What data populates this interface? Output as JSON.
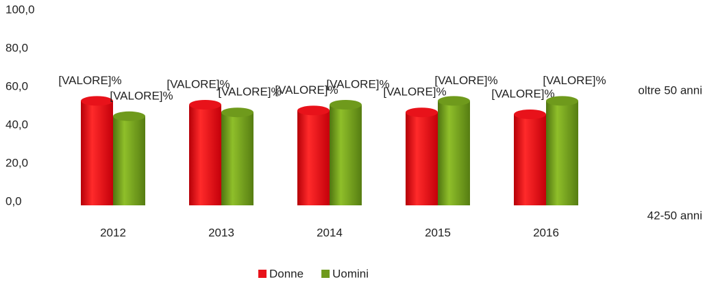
{
  "chart_data": {
    "type": "bar3d",
    "categories": [
      "2012",
      "2013",
      "2014",
      "2015",
      "2016"
    ],
    "depth_categories": [
      "42-50 anni",
      "oltre 50 anni"
    ],
    "series": [
      {
        "name": "Donne",
        "color": "#e8121a",
        "values": [
          57,
          55,
          52,
          51,
          50
        ],
        "value_labels": [
          "[VALORE]%",
          "[VALORE]%",
          "[VALORE]%",
          "[VALORE]%",
          "[VALORE]%"
        ]
      },
      {
        "name": "Uomini",
        "color": "#6f9a1c",
        "values": [
          49,
          51,
          55,
          57,
          57
        ],
        "value_labels": [
          "[VALORE]%",
          "[VALORE]%",
          "[VALORE]%",
          "[VALORE]%",
          "[VALORE]%"
        ]
      }
    ],
    "ylim": [
      0,
      100
    ],
    "yticks": [
      {
        "value": 0,
        "label": "0,0"
      },
      {
        "value": 20,
        "label": "20,0"
      },
      {
        "value": 40,
        "label": "40,0"
      },
      {
        "value": 60,
        "label": "60,0"
      },
      {
        "value": 80,
        "label": "80,0"
      },
      {
        "value": 100,
        "label": "100,0"
      }
    ],
    "legend": "bottom"
  }
}
